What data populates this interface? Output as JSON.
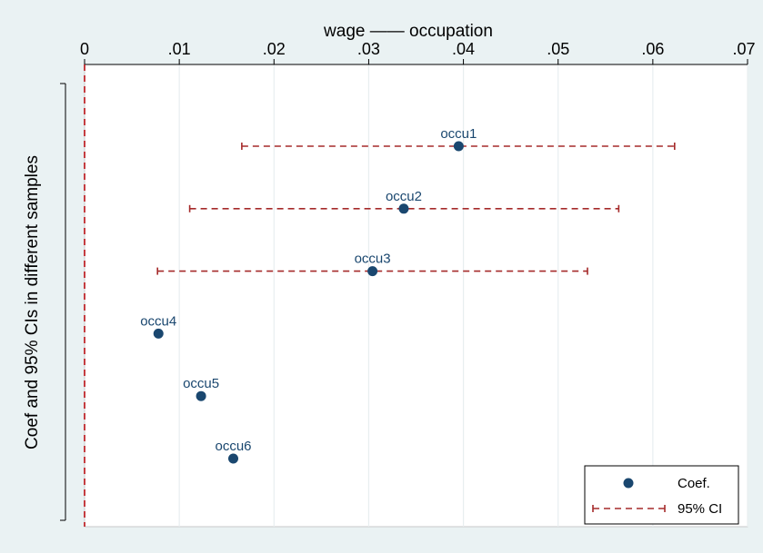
{
  "chart_data": {
    "type": "scatter",
    "title": "wage —— occupation",
    "ylabel": "Coef and 95% CIs in different samples",
    "xlabel": "",
    "x_axis_position": "top",
    "xlim": [
      0,
      0.07
    ],
    "x_ticks": [
      0,
      0.01,
      0.02,
      0.03,
      0.04,
      0.05,
      0.06,
      0.07
    ],
    "x_tick_labels": [
      "0",
      ".01",
      ".02",
      ".03",
      ".04",
      ".05",
      ".06",
      ".07"
    ],
    "grid": true,
    "reference_line": {
      "x": 0,
      "style": "dashed",
      "color": "#b22222"
    },
    "series": [
      {
        "name": "Coef.",
        "points": [
          {
            "label": "occu1",
            "x": 0.0395,
            "ci_low": 0.0166,
            "ci_high": 0.0623
          },
          {
            "label": "occu2",
            "x": 0.0337,
            "ci_low": 0.0111,
            "ci_high": 0.0564
          },
          {
            "label": "occu3",
            "x": 0.0304,
            "ci_low": 0.0077,
            "ci_high": 0.0531
          },
          {
            "label": "occu4",
            "x": 0.0078
          },
          {
            "label": "occu5",
            "x": 0.0123
          },
          {
            "label": "occu6",
            "x": 0.0157
          }
        ]
      }
    ],
    "legend": {
      "position": "bottom-right",
      "items": [
        {
          "label": "Coef.",
          "kind": "marker"
        },
        {
          "label": "95% CI",
          "kind": "ci-line"
        }
      ]
    },
    "colors": {
      "marker": "#1a476f",
      "ci": "#a52a2a",
      "ref_line": "#c0282d",
      "grid": "#e8eef0",
      "plot_bg": "#ffffff",
      "outer_bg": "#eaf2f3",
      "label_text": "#1a476f"
    }
  }
}
